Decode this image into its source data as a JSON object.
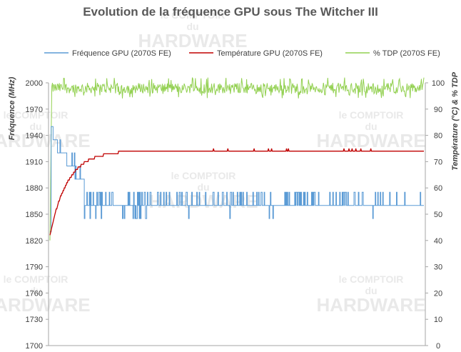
{
  "chart_data": {
    "type": "line",
    "title": "Evolution de la fréquence GPU sous The Witcher III",
    "ylabel_left": "Fréquence (MHz)",
    "ylabel_right": "Température (°C) & % TDP",
    "ylim_left": [
      1700,
      2000
    ],
    "ylim_right": [
      0,
      100
    ],
    "yticks_left": [
      "2000",
      "1970",
      "1940",
      "1910",
      "1880",
      "1850",
      "1820",
      "1790",
      "1760",
      "1730",
      "1700"
    ],
    "yticks_right": [
      "100",
      "90",
      "80",
      "70",
      "60",
      "50",
      "40",
      "30",
      "20",
      "10",
      "0"
    ],
    "legend_position": "top",
    "grid": false,
    "x_samples": 600,
    "series": [
      {
        "name": "Fréquence GPU (2070S FE)",
        "axis": "left",
        "color": "#5b9bd5",
        "segments": [
          {
            "from": 0,
            "to": 2,
            "value": 1830
          },
          {
            "from": 2,
            "to": 5,
            "value": 1950
          },
          {
            "from": 5,
            "to": 12,
            "value": 1935
          },
          {
            "from": 12,
            "to": 25,
            "value": 1920
          },
          {
            "from": 25,
            "to": 40,
            "value": 1905
          },
          {
            "from": 40,
            "to": 55,
            "value": 1890
          },
          {
            "from": 55,
            "to": 600,
            "value": 1860
          }
        ],
        "alt_values": [
          1875,
          1845
        ]
      },
      {
        "name": "Température GPU  (2070S FE)",
        "axis": "right",
        "color": "#c00000",
        "start": 42,
        "plateau": 74,
        "rise_samples": 110
      },
      {
        "name": "% TDP (2070S FE)",
        "axis": "right",
        "color": "#92d050",
        "mean": 98,
        "range": [
          94,
          102
        ]
      }
    ]
  },
  "watermark": {
    "line1": "le COMPTOIR",
    "line2": "du",
    "line3": "HARDWARE"
  }
}
